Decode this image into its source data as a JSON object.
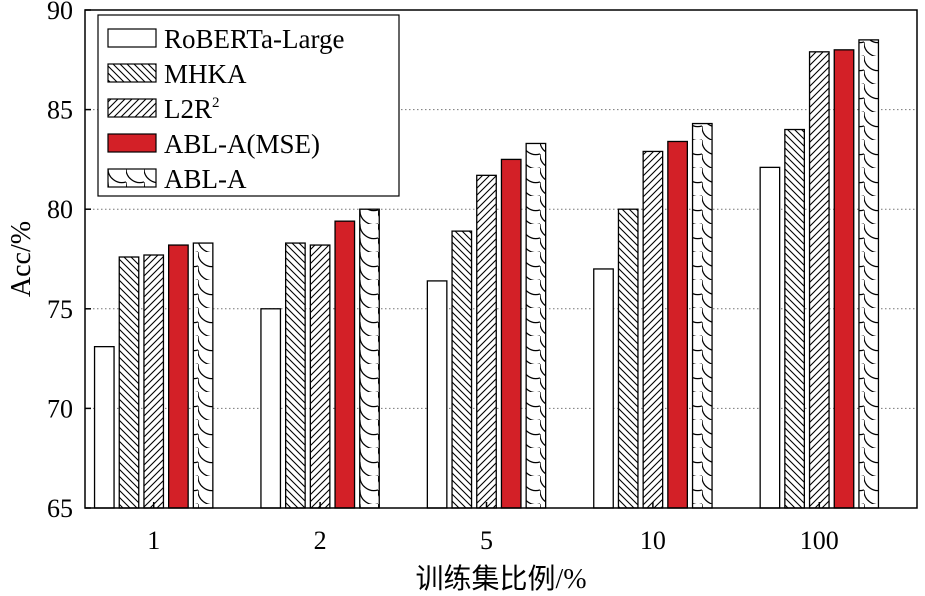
{
  "chart_data": {
    "type": "bar",
    "xlabel": "训练集比例/%",
    "ylabel": "Acc/%",
    "categories": [
      "1",
      "2",
      "5",
      "10",
      "100"
    ],
    "ylim": [
      65,
      90
    ],
    "yticks": [
      "65",
      "70",
      "75",
      "80",
      "85",
      "90"
    ],
    "grid": "horizontal dotted",
    "legend_position": "top-left",
    "series": [
      {
        "name": "RoBERTa-Large",
        "legend_base": "RoBERTa-Large",
        "legend_sup": "",
        "pattern": "none",
        "color": "#ffffff",
        "values": [
          73.1,
          75.0,
          76.4,
          77.0,
          82.1
        ]
      },
      {
        "name": "MHKA",
        "legend_base": "MHKA",
        "legend_sup": "",
        "pattern": "backslash-hatch",
        "color": "#ffffff",
        "values": [
          77.6,
          78.3,
          78.9,
          80.0,
          84.0
        ]
      },
      {
        "name": "L2R²",
        "legend_base": "L2R",
        "legend_sup": "2",
        "pattern": "slash-hatch",
        "color": "#ffffff",
        "values": [
          77.7,
          78.2,
          81.7,
          82.9,
          87.9
        ]
      },
      {
        "name": "ABL-A(MSE)",
        "legend_base": "ABL-A(MSE)",
        "legend_sup": "",
        "pattern": "solid",
        "color": "#d32027",
        "values": [
          78.2,
          79.4,
          82.5,
          83.4,
          88.0
        ]
      },
      {
        "name": "ABL-A",
        "legend_base": "ABL-A",
        "legend_sup": "",
        "pattern": "arcs",
        "color": "#ffffff",
        "values": [
          78.3,
          80.0,
          83.3,
          84.3,
          88.5
        ]
      }
    ]
  }
}
